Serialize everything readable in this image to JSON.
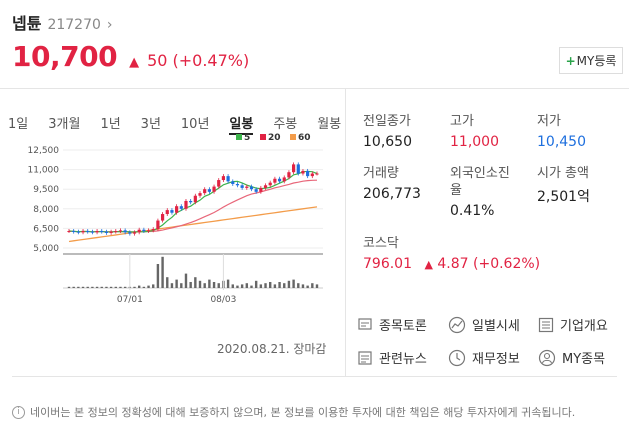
{
  "stock": {
    "name": "넵튠",
    "code": "217270",
    "chevron": "›",
    "price": "10,700",
    "change_arrow": "▲",
    "change": "50 (+0.47%)"
  },
  "my_button": {
    "plus": "+",
    "label": "MY등록"
  },
  "tabs": [
    "1일",
    "3개월",
    "1년",
    "3년",
    "10년",
    "일봉",
    "주봉",
    "월봉"
  ],
  "active_tab": "일봉",
  "legend": [
    {
      "label": "5",
      "color": "#3cb44b"
    },
    {
      "label": "20",
      "color": "#e12343"
    },
    {
      "label": "60",
      "color": "#f39c4a"
    }
  ],
  "chart_data": {
    "type": "line",
    "y_ticks": [
      "12,500",
      "11,000",
      "9,500",
      "8,000",
      "6,500",
      "5,000"
    ],
    "x_ticks": [
      "07/01",
      "08/03"
    ]
  },
  "chart_date": "2020.08.21. 장마감",
  "stats": [
    {
      "label": "전일종가",
      "value": "10,650",
      "color": "normal"
    },
    {
      "label": "고가",
      "value": "11,000",
      "color": "red"
    },
    {
      "label": "저가",
      "value": "10,450",
      "color": "blue"
    },
    {
      "label": "거래량",
      "value": "206,773",
      "color": "normal"
    },
    {
      "label": "외국인소진율",
      "value": "0.41%",
      "color": "normal"
    },
    {
      "label": "시가 총액",
      "value": "2,501억",
      "color": "normal"
    }
  ],
  "kosdaq": {
    "label": "코스닥",
    "value": "796.01",
    "arrow": "▲",
    "change": "4.87 (+0.62%)"
  },
  "menu": [
    {
      "label": "종목토론",
      "icon": "chat-icon"
    },
    {
      "label": "일별시세",
      "icon": "trend-icon"
    },
    {
      "label": "기업개요",
      "icon": "list-icon"
    },
    {
      "label": "관련뉴스",
      "icon": "news-icon"
    },
    {
      "label": "재무정보",
      "icon": "clock-icon"
    },
    {
      "label": "MY종목",
      "icon": "person-icon"
    }
  ],
  "disclaimer": "네이버는 본 정보의 정확성에 대해 보증하지 않으며, 본 정보를 이용한 투자에 대한 책임은 해당 투자자에게 귀속됩니다.",
  "info_glyph": "i"
}
